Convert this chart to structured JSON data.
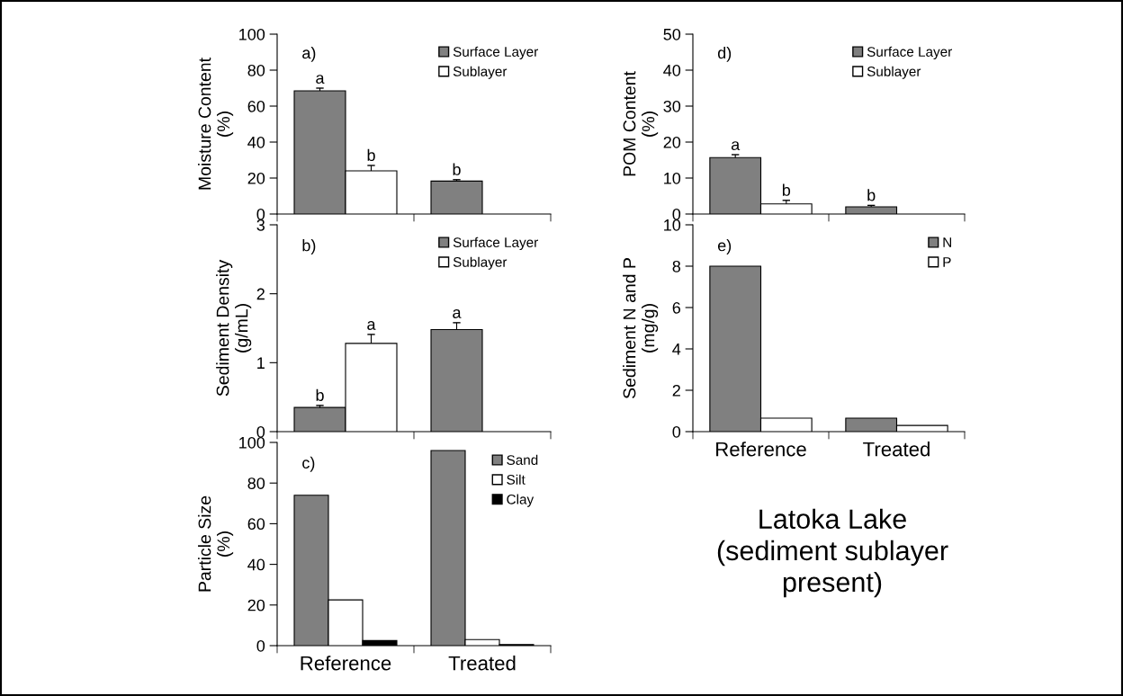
{
  "chart_data": [
    {
      "type": "bar",
      "categories": [
        null,
        null
      ],
      "ylabel": "Moisture Content\n(%)",
      "ylim": [
        0,
        100
      ],
      "yticks": [
        0,
        20,
        40,
        60,
        80,
        100
      ],
      "tick_labels": "y",
      "legend": "top right",
      "grid": false,
      "annotations": [
        "a)"
      ],
      "series": [
        {
          "name": "Surface Layer",
          "color": "#808080",
          "values": [
            68.5,
            18.3
          ],
          "errors": [
            1.5,
            0.8
          ],
          "value_labels": [
            "a",
            "b"
          ]
        },
        {
          "name": "Sublayer",
          "color": "#ffffff",
          "values": [
            24,
            null
          ],
          "errors": [
            3,
            null
          ],
          "value_labels": [
            "b",
            null
          ]
        }
      ]
    },
    {
      "type": "bar",
      "categories": [
        null,
        null
      ],
      "ylabel": "Sediment Density\n(g/mL)",
      "ylim": [
        0,
        3
      ],
      "yticks": [
        0,
        1,
        2,
        3
      ],
      "tick_labels": "y",
      "legend": "top right",
      "grid": false,
      "annotations": [
        "b)"
      ],
      "series": [
        {
          "name": "Surface Layer",
          "color": "#808080",
          "values": [
            0.35,
            1.48
          ],
          "errors": [
            0.03,
            0.1
          ],
          "value_labels": [
            "b",
            "a"
          ]
        },
        {
          "name": "Sublayer",
          "color": "#ffffff",
          "values": [
            1.28,
            null
          ],
          "errors": [
            0.13,
            null
          ],
          "value_labels": [
            "a",
            null
          ]
        }
      ]
    },
    {
      "type": "bar",
      "categories": [
        "Reference",
        "Treated"
      ],
      "ylabel": "Particle Size\n(%)",
      "ylim": [
        0,
        100
      ],
      "yticks": [
        0,
        20,
        40,
        60,
        80,
        100
      ],
      "legend": "top right",
      "grid": false,
      "annotations": [
        "c)"
      ],
      "series": [
        {
          "name": "Sand",
          "color": "#808080",
          "values": [
            74,
            96
          ]
        },
        {
          "name": "Silt",
          "color": "#ffffff",
          "values": [
            22.5,
            3
          ]
        },
        {
          "name": "Clay",
          "color": "#000000",
          "values": [
            2.5,
            0.5
          ]
        }
      ]
    },
    {
      "type": "bar",
      "categories": [
        null,
        null
      ],
      "ylabel": "POM Content\n(%)",
      "ylim": [
        0,
        50
      ],
      "yticks": [
        0,
        10,
        20,
        30,
        40,
        50
      ],
      "tick_labels": "y",
      "legend": "top right",
      "grid": false,
      "annotations": [
        "d)"
      ],
      "series": [
        {
          "name": "Surface Layer",
          "color": "#808080",
          "values": [
            15.7,
            2.0
          ],
          "errors": [
            0.8,
            0.4
          ],
          "value_labels": [
            "a",
            "b"
          ]
        },
        {
          "name": "Sublayer",
          "color": "#ffffff",
          "values": [
            2.8,
            null
          ],
          "errors": [
            1.0,
            null
          ],
          "value_labels": [
            "b",
            null
          ]
        }
      ]
    },
    {
      "type": "bar",
      "categories": [
        "Reference",
        "Treated"
      ],
      "ylabel": "Sediment N and P\n(mg/g)",
      "ylim": [
        0,
        10
      ],
      "yticks": [
        0,
        2,
        4,
        6,
        8,
        10
      ],
      "legend": "top right",
      "grid": false,
      "annotations": [
        "e)"
      ],
      "series": [
        {
          "name": "N",
          "color": "#808080",
          "values": [
            8.0,
            0.65
          ]
        },
        {
          "name": "P",
          "color": "#ffffff",
          "values": [
            0.65,
            0.3
          ]
        }
      ]
    },
    {
      "type": "other",
      "annotations": [
        "Latoka Lake\n(sediment sublayer\npresent)"
      ]
    }
  ]
}
